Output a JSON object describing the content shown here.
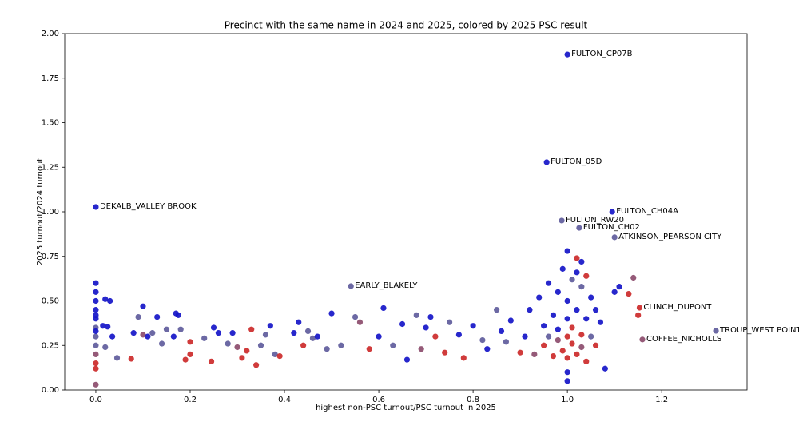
{
  "chart_data": {
    "type": "scatter",
    "title": "Precinct with the same name in 2024 and 2025, colored by 2025 PSC result",
    "x_label": "highest non-PSC turnout/PSC turnout in 2025",
    "y_label": "2025 turnout/2024 turnout",
    "xlim": [
      -0.066,
      1.381
    ],
    "ylim": [
      0,
      2
    ],
    "xticks": [
      {
        "value": 0,
        "label": "0.0"
      },
      0.2,
      0.4,
      0.6,
      0.8,
      {
        "value": 1,
        "label": "1.0"
      },
      1.2
    ],
    "yticks": [
      {
        "value": 0,
        "label": "0.00"
      },
      0.25,
      {
        "value": 0.5,
        "label": "0.50"
      },
      0.75,
      {
        "value": 1,
        "label": "1.00"
      },
      1.25,
      {
        "value": 1.5,
        "label": "1.50"
      },
      1.75,
      {
        "value": 2,
        "label": "2.00"
      }
    ],
    "series": [
      {
        "x": [
          0,
          0,
          0,
          0,
          0,
          0,
          0,
          0,
          0,
          0,
          0,
          0,
          0,
          0,
          0.02,
          0.03,
          0.015,
          0.025,
          0.02,
          0.045,
          0.035,
          0.075,
          0.08,
          0.09,
          0.1,
          0.1,
          0.11,
          0.12,
          0.13,
          0.14,
          0.15,
          0.165,
          0.17,
          0.175,
          0.18,
          0.19,
          0.2,
          0.2,
          0.23,
          0.245,
          0.25,
          0.26,
          0.28,
          0.29,
          0.3,
          0.31,
          0.32,
          0.33,
          0.34,
          0.35,
          0.36,
          0.37,
          0.38,
          0.39,
          0.42,
          0.43,
          0.44,
          0.45,
          0.46,
          0.47,
          0.49,
          0.5,
          0.52,
          0.55,
          0.56,
          0.58,
          0.6,
          0.61,
          0.63,
          0.65,
          0.66,
          0.68,
          0.69,
          0.7,
          0.71,
          0.72,
          0.74,
          0.75,
          0.77,
          0.78,
          0.8,
          0.82,
          0.83,
          0.85,
          0.86,
          0.87,
          0.88,
          0.9,
          0.91,
          0.92,
          0.93,
          0.94,
          0.95,
          0.95,
          0.96,
          0.96,
          0.97,
          0.97,
          0.98,
          0.98,
          0.98,
          0.99,
          0.99,
          1.0,
          1.0,
          1.0,
          1.0,
          1.0,
          1.0,
          1.0,
          1.01,
          1.01,
          1.01,
          1.02,
          1.02,
          1.02,
          1.03,
          1.03,
          1.03,
          1.04,
          1.04,
          1.04,
          1.05,
          1.05,
          1.06,
          1.06,
          1.07,
          1.08,
          1.1,
          1.11,
          1.14,
          1.15,
          1.13,
          1.03,
          1.02
        ],
        "y": [
          0.6,
          0.55,
          0.5,
          0.45,
          0.4,
          0.35,
          0.3,
          0.25,
          0.2,
          0.15,
          0.12,
          0.03,
          0.42,
          0.33,
          0.51,
          0.5,
          0.36,
          0.355,
          0.24,
          0.18,
          0.3,
          0.175,
          0.32,
          0.41,
          0.31,
          0.47,
          0.3,
          0.32,
          0.41,
          0.26,
          0.34,
          0.3,
          0.43,
          0.42,
          0.34,
          0.17,
          0.2,
          0.27,
          0.29,
          0.16,
          0.35,
          0.32,
          0.26,
          0.32,
          0.24,
          0.18,
          0.22,
          0.34,
          0.14,
          0.25,
          0.31,
          0.36,
          0.2,
          0.19,
          0.32,
          0.38,
          0.25,
          0.33,
          0.29,
          0.3,
          0.23,
          0.43,
          0.25,
          0.41,
          0.38,
          0.23,
          0.3,
          0.46,
          0.25,
          0.37,
          0.17,
          0.42,
          0.23,
          0.35,
          0.41,
          0.3,
          0.21,
          0.38,
          0.31,
          0.18,
          0.36,
          0.28,
          0.23,
          0.45,
          0.33,
          0.27,
          0.39,
          0.21,
          0.3,
          0.45,
          0.2,
          0.52,
          0.36,
          0.25,
          0.6,
          0.3,
          0.42,
          0.19,
          0.55,
          0.28,
          0.34,
          0.68,
          0.22,
          0.78,
          0.5,
          0.4,
          0.3,
          0.18,
          0.1,
          0.05,
          0.62,
          0.35,
          0.26,
          0.74,
          0.45,
          0.2,
          0.58,
          0.31,
          0.24,
          0.64,
          0.4,
          0.16,
          0.52,
          0.3,
          0.45,
          0.25,
          0.38,
          0.12,
          0.55,
          0.58,
          0.63,
          0.42,
          0.54,
          0.72,
          0.66
        ],
        "colors": [
          "#1515c8",
          "#1515c8",
          "#1515c8",
          "#1515c8",
          "#1515c8",
          "#605c9c",
          "#605c9c",
          "#605c9c",
          "#8c4c6c",
          "#cc2a2a",
          "#cc2a2a",
          "#8c4c6c",
          "#1515c8",
          "#1515c8",
          "#1515c8",
          "#1515c8",
          "#1515c8",
          "#1515c8",
          "#605c9c",
          "#605c9c",
          "#1515c8",
          "#cc2a2a",
          "#1515c8",
          "#605c9c",
          "#8c4c6c",
          "#1515c8",
          "#1515c8",
          "#605c9c",
          "#1515c8",
          "#605c9c",
          "#605c9c",
          "#1515c8",
          "#1515c8",
          "#1515c8",
          "#605c9c",
          "#cc2a2a",
          "#cc2a2a",
          "#cc2a2a",
          "#605c9c",
          "#cc2a2a",
          "#1515c8",
          "#1515c8",
          "#605c9c",
          "#1515c8",
          "#8c4c6c",
          "#cc2a2a",
          "#cc2a2a",
          "#cc2a2a",
          "#cc2a2a",
          "#605c9c",
          "#605c9c",
          "#1515c8",
          "#605c9c",
          "#cc2a2a",
          "#1515c8",
          "#1515c8",
          "#cc2a2a",
          "#605c9c",
          "#605c9c",
          "#1515c8",
          "#605c9c",
          "#1515c8",
          "#605c9c",
          "#605c9c",
          "#8c4c6c",
          "#cc2a2a",
          "#1515c8",
          "#1515c8",
          "#605c9c",
          "#1515c8",
          "#1515c8",
          "#605c9c",
          "#8c4c6c",
          "#1515c8",
          "#1515c8",
          "#cc2a2a",
          "#cc2a2a",
          "#605c9c",
          "#1515c8",
          "#cc2a2a",
          "#1515c8",
          "#605c9c",
          "#1515c8",
          "#605c9c",
          "#1515c8",
          "#605c9c",
          "#1515c8",
          "#cc2a2a",
          "#1515c8",
          "#1515c8",
          "#8c4c6c",
          "#1515c8",
          "#1515c8",
          "#cc2a2a",
          "#1515c8",
          "#605c9c",
          "#1515c8",
          "#cc2a2a",
          "#1515c8",
          "#8c4c6c",
          "#1515c8",
          "#1515c8",
          "#cc2a2a",
          "#1515c8",
          "#1515c8",
          "#1515c8",
          "#cc2a2a",
          "#cc2a2a",
          "#1515c8",
          "#1515c8",
          "#605c9c",
          "#cc2a2a",
          "#cc2a2a",
          "#cc2a2a",
          "#1515c8",
          "#cc2a2a",
          "#605c9c",
          "#cc2a2a",
          "#8c4c6c",
          "#cc2a2a",
          "#1515c8",
          "#cc2a2a",
          "#1515c8",
          "#605c9c",
          "#1515c8",
          "#cc2a2a",
          "#1515c8",
          "#1515c8",
          "#1515c8",
          "#1515c8",
          "#8c4c6c",
          "#cc2a2a",
          "#cc2a2a",
          "#1515c8",
          "#1515c8"
        ]
      },
      {
        "x": [
          1.0,
          0.956,
          0.0,
          1.095,
          0.988,
          1.025,
          1.1,
          0.541,
          1.153,
          1.159,
          1.315
        ],
        "y": [
          1.883,
          1.278,
          1.027,
          1.0,
          0.951,
          0.91,
          0.857,
          0.583,
          0.462,
          0.283,
          0.332
        ],
        "colors": [
          "#1515c8",
          "#1515c8",
          "#1515c8",
          "#1515c8",
          "#605c9c",
          "#605c9c",
          "#605c9c",
          "#605c9c",
          "#cc2a2a",
          "#8c4c6c",
          "#605c9c"
        ],
        "labels": [
          "FULTON_CP07B",
          "FULTON_05D",
          "DEKALB_VALLEY BROOK",
          "FULTON_CH04A",
          "FULTON_RW20",
          "FULTON_CH02",
          "ATKINSON_PEARSON CITY",
          "EARLY_BLAKELY",
          "CLINCH_DUPONT",
          "COFFEE_NICHOLLS",
          "TROUP_WEST POINT"
        ]
      }
    ]
  }
}
